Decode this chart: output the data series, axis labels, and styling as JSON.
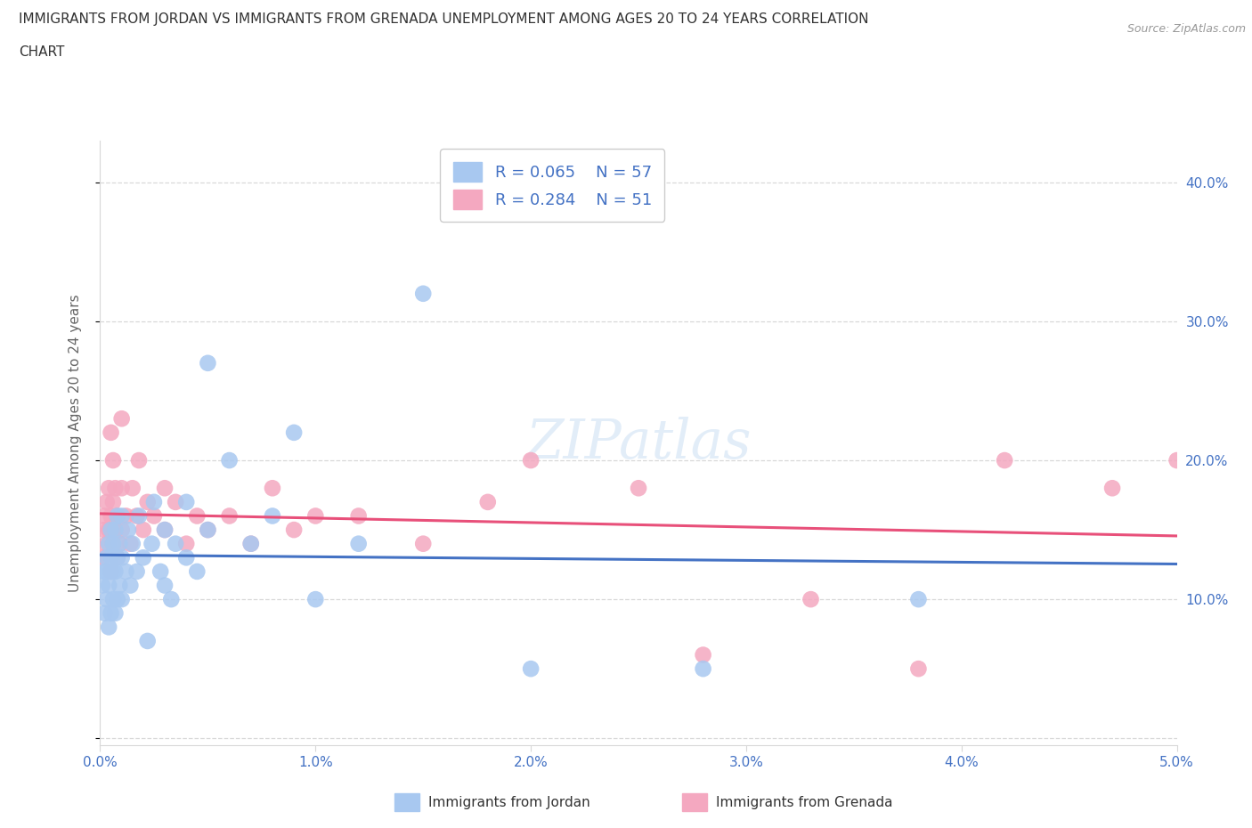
{
  "title_line1": "IMMIGRANTS FROM JORDAN VS IMMIGRANTS FROM GRENADA UNEMPLOYMENT AMONG AGES 20 TO 24 YEARS CORRELATION",
  "title_line2": "CHART",
  "source": "Source: ZipAtlas.com",
  "ylabel": "Unemployment Among Ages 20 to 24 years",
  "legend_jordan": "Immigrants from Jordan",
  "legend_grenada": "Immigrants from Grenada",
  "jordan_R": 0.065,
  "jordan_N": 57,
  "grenada_R": 0.284,
  "grenada_N": 51,
  "xlim": [
    0.0,
    0.05
  ],
  "ylim": [
    -0.005,
    0.43
  ],
  "xticks": [
    0.0,
    0.01,
    0.02,
    0.03,
    0.04,
    0.05
  ],
  "xtick_labels": [
    "0.0%",
    "1.0%",
    "2.0%",
    "3.0%",
    "4.0%",
    "5.0%"
  ],
  "yticks": [
    0.0,
    0.1,
    0.2,
    0.3,
    0.4
  ],
  "ytick_labels": [
    "",
    "10.0%",
    "20.0%",
    "30.0%",
    "40.0%"
  ],
  "jordan_color": "#a8c8f0",
  "grenada_color": "#f4a8c0",
  "jordan_line_color": "#4472c4",
  "grenada_line_color": "#e8507a",
  "tick_color": "#4472c4",
  "grid_color": "#d8d8d8",
  "title_color": "#333333",
  "source_color": "#999999",
  "jordan_x": [
    0.0001,
    0.0002,
    0.0002,
    0.0003,
    0.0003,
    0.0003,
    0.0004,
    0.0004,
    0.0004,
    0.0005,
    0.0005,
    0.0005,
    0.0005,
    0.0006,
    0.0006,
    0.0006,
    0.0007,
    0.0007,
    0.0007,
    0.0008,
    0.0008,
    0.0008,
    0.0009,
    0.0009,
    0.001,
    0.001,
    0.001,
    0.0012,
    0.0013,
    0.0014,
    0.0015,
    0.0017,
    0.0018,
    0.002,
    0.0022,
    0.0024,
    0.0025,
    0.0028,
    0.003,
    0.003,
    0.0033,
    0.0035,
    0.004,
    0.004,
    0.0045,
    0.005,
    0.005,
    0.006,
    0.007,
    0.008,
    0.009,
    0.01,
    0.012,
    0.015,
    0.02,
    0.028,
    0.038
  ],
  "jordan_y": [
    0.11,
    0.09,
    0.12,
    0.1,
    0.12,
    0.13,
    0.08,
    0.11,
    0.14,
    0.09,
    0.12,
    0.13,
    0.15,
    0.1,
    0.12,
    0.14,
    0.09,
    0.12,
    0.15,
    0.1,
    0.13,
    0.16,
    0.11,
    0.14,
    0.1,
    0.13,
    0.16,
    0.12,
    0.15,
    0.11,
    0.14,
    0.12,
    0.16,
    0.13,
    0.07,
    0.14,
    0.17,
    0.12,
    0.11,
    0.15,
    0.1,
    0.14,
    0.13,
    0.17,
    0.12,
    0.15,
    0.27,
    0.2,
    0.14,
    0.16,
    0.22,
    0.1,
    0.14,
    0.32,
    0.05,
    0.05,
    0.1
  ],
  "grenada_x": [
    0.0001,
    0.0002,
    0.0002,
    0.0003,
    0.0003,
    0.0004,
    0.0004,
    0.0005,
    0.0005,
    0.0005,
    0.0006,
    0.0006,
    0.0006,
    0.0007,
    0.0007,
    0.0008,
    0.0008,
    0.0009,
    0.001,
    0.001,
    0.001,
    0.0012,
    0.0014,
    0.0015,
    0.0017,
    0.0018,
    0.002,
    0.0022,
    0.0025,
    0.003,
    0.003,
    0.0035,
    0.004,
    0.0045,
    0.005,
    0.006,
    0.007,
    0.008,
    0.009,
    0.01,
    0.012,
    0.015,
    0.018,
    0.02,
    0.025,
    0.028,
    0.033,
    0.038,
    0.042,
    0.047,
    0.05
  ],
  "grenada_y": [
    0.13,
    0.15,
    0.16,
    0.14,
    0.17,
    0.15,
    0.18,
    0.12,
    0.16,
    0.22,
    0.14,
    0.17,
    0.2,
    0.15,
    0.18,
    0.13,
    0.16,
    0.14,
    0.15,
    0.18,
    0.23,
    0.16,
    0.14,
    0.18,
    0.16,
    0.2,
    0.15,
    0.17,
    0.16,
    0.15,
    0.18,
    0.17,
    0.14,
    0.16,
    0.15,
    0.16,
    0.14,
    0.18,
    0.15,
    0.16,
    0.16,
    0.14,
    0.17,
    0.2,
    0.18,
    0.06,
    0.1,
    0.05,
    0.2,
    0.18,
    0.2
  ]
}
